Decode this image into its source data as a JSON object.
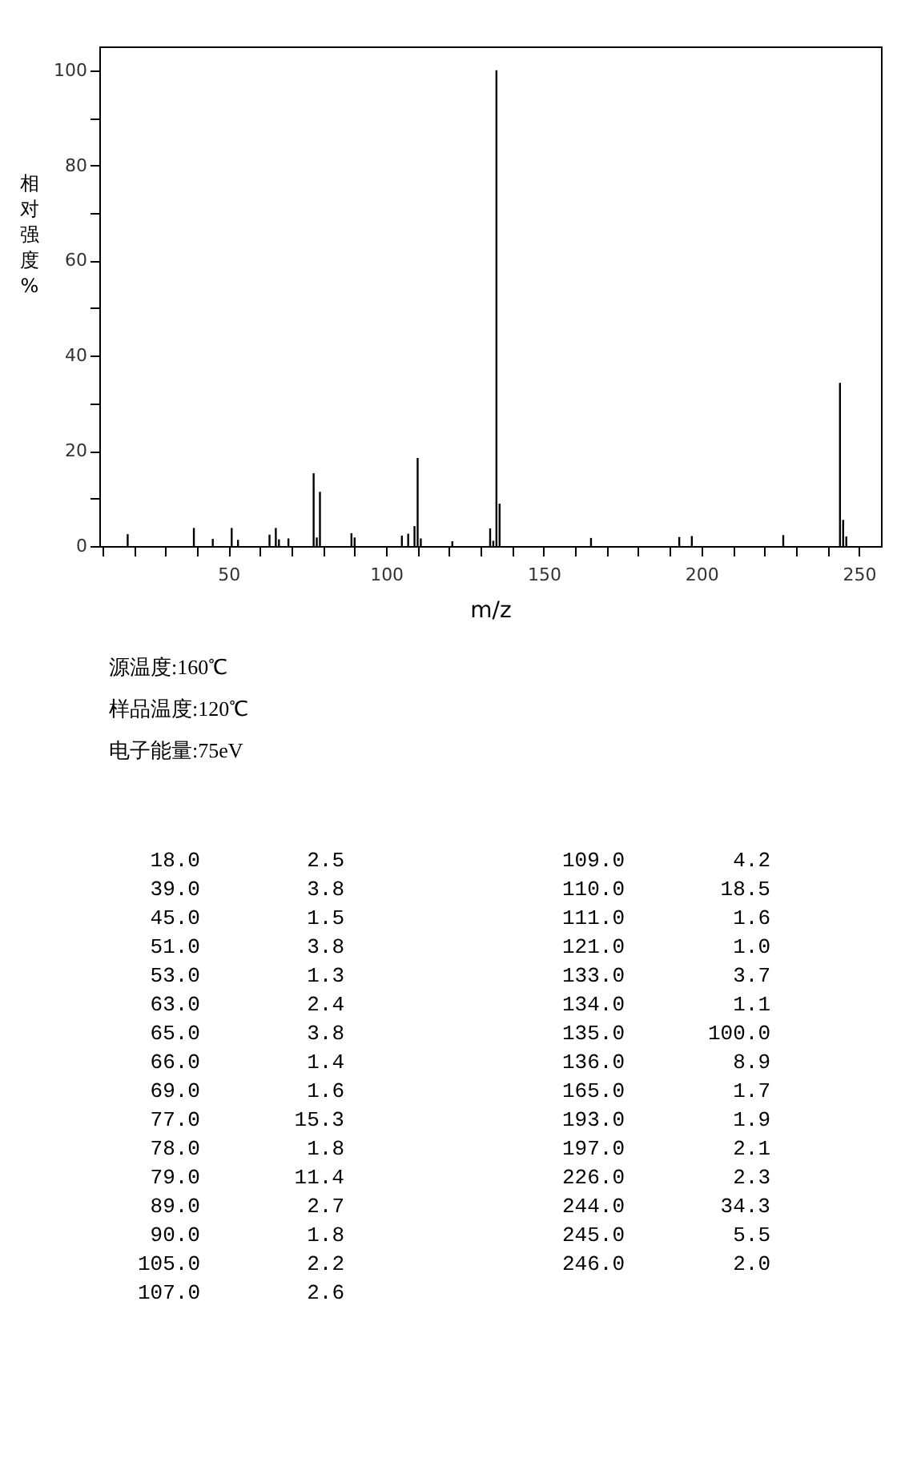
{
  "chart_data": [
    {
      "type": "bar",
      "xlabel": "m/z",
      "ylabel": "相对强度%",
      "x": [
        18,
        39,
        45,
        51,
        53,
        63,
        65,
        66,
        69,
        77,
        78,
        79,
        89,
        90,
        105,
        107,
        109,
        110,
        111,
        121,
        133,
        134,
        135,
        136,
        165,
        193,
        197,
        226,
        244,
        245,
        246
      ],
      "values": [
        2.5,
        3.8,
        1.5,
        3.8,
        1.3,
        2.4,
        3.8,
        1.4,
        1.6,
        15.3,
        1.8,
        11.4,
        2.7,
        1.8,
        2.2,
        2.6,
        4.2,
        18.5,
        1.6,
        1.0,
        3.7,
        1.1,
        100.0,
        8.9,
        1.7,
        1.9,
        2.1,
        2.3,
        34.3,
        5.5,
        2.0
      ],
      "color": "#000000",
      "xlim": [
        9,
        257
      ],
      "xticks": [
        {
          "value": 10,
          "label": null
        },
        {
          "value": 20,
          "label": null
        },
        {
          "value": 30,
          "label": null
        },
        {
          "value": 40,
          "label": null
        },
        50,
        {
          "value": 60,
          "label": null
        },
        {
          "value": 70,
          "label": null
        },
        {
          "value": 80,
          "label": null
        },
        {
          "value": 90,
          "label": null
        },
        100,
        {
          "value": 110,
          "label": null
        },
        {
          "value": 120,
          "label": null
        },
        {
          "value": 130,
          "label": null
        },
        {
          "value": 140,
          "label": null
        },
        150,
        {
          "value": 160,
          "label": null
        },
        {
          "value": 170,
          "label": null
        },
        {
          "value": 180,
          "label": null
        },
        {
          "value": 190,
          "label": null
        },
        200,
        {
          "value": 210,
          "label": null
        },
        {
          "value": 220,
          "label": null
        },
        {
          "value": 230,
          "label": null
        },
        {
          "value": 240,
          "label": null
        },
        250
      ],
      "ylim": [
        0,
        105
      ],
      "yticks": [
        0,
        {
          "value": 10,
          "label": null
        },
        20,
        {
          "value": 30,
          "label": null
        },
        40,
        {
          "value": 50,
          "label": null
        },
        60,
        {
          "value": 70,
          "label": null
        },
        80,
        {
          "value": 90,
          "label": null
        },
        100
      ],
      "grid": false
    },
    {
      "type": "other",
      "annotations": [
        "源温度:160℃",
        "样品温度:120℃",
        "电子能量:75eV"
      ],
      "categories": [
        "18.0",
        "39.0",
        "45.0",
        "51.0",
        "53.0",
        "63.0",
        "65.0",
        "66.0",
        "69.0",
        "77.0",
        "78.0",
        "79.0",
        "89.0",
        "90.0",
        "105.0",
        "107.0",
        "109.0",
        "110.0",
        "111.0",
        "121.0",
        "133.0",
        "134.0",
        "135.0",
        "136.0",
        "165.0",
        "193.0",
        "197.0",
        "226.0",
        "244.0",
        "245.0",
        "246.0"
      ],
      "value_labels": [
        "2.5",
        "3.8",
        "1.5",
        "3.8",
        "1.3",
        "2.4",
        "3.8",
        "1.4",
        "1.6",
        "15.3",
        "1.8",
        "11.4",
        "2.7",
        "1.8",
        "2.2",
        "2.6",
        "4.2",
        "18.5",
        "1.6",
        "1.0",
        "3.7",
        "1.1",
        "100.0",
        "8.9",
        "1.7",
        "1.9",
        "2.1",
        "2.3",
        "34.3",
        "5.5",
        "2.0"
      ]
    }
  ]
}
